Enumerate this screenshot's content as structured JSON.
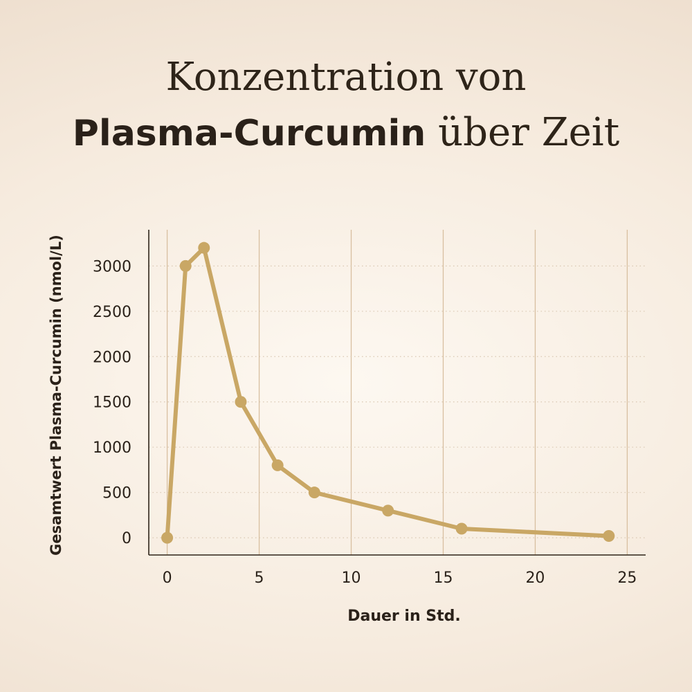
{
  "title": {
    "line1": "Konzentration von",
    "bold": "Plasma-Curcumin",
    "rest": " über Zeit"
  },
  "colors": {
    "line": "#c9a765",
    "grid_vertical": "#d8bfa0",
    "grid_horizontal": "#d9c7b2",
    "axis": "#2e2419",
    "text": "#2a2119"
  },
  "chart_data": {
    "type": "line",
    "xlabel": "Dauer in Std.",
    "ylabel": "Gesamtwert Plasma-Curcumin (nmol/L)",
    "xlim": [
      -1,
      26
    ],
    "ylim": [
      -190,
      3400
    ],
    "xticks": [
      0,
      5,
      10,
      15,
      20,
      25
    ],
    "yticks": [
      0,
      500,
      1000,
      1500,
      2000,
      2500,
      3000
    ],
    "grid": {
      "vertical": "solid",
      "horizontal": "dotted"
    },
    "series": [
      {
        "x": [
          0,
          1,
          2,
          4,
          6,
          8,
          12,
          16,
          24
        ],
        "y": [
          0,
          3000,
          3200,
          1500,
          800,
          500,
          300,
          100,
          20
        ]
      }
    ]
  }
}
